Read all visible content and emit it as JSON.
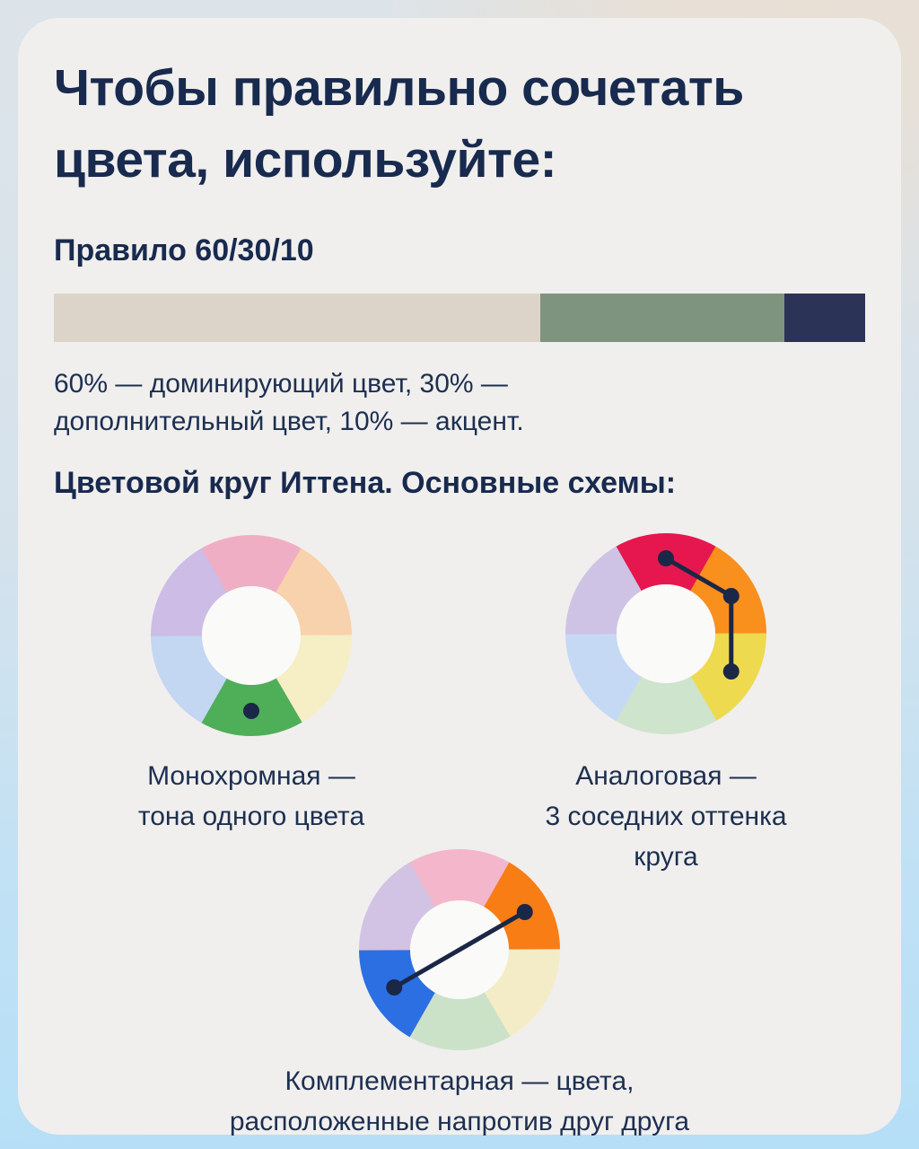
{
  "title_lines": [
    "Чтобы правильно сочетать",
    "цвета, используйте:"
  ],
  "rule": {
    "heading": "Правило 60/30/10",
    "bar_segments": [
      {
        "label": "60%",
        "percent": 60,
        "color": "#dcd4c9"
      },
      {
        "label": "30%",
        "percent": 30,
        "color": "#7f947e"
      },
      {
        "label": "10%",
        "percent": 10,
        "color": "#2b3456"
      }
    ],
    "description_lines": [
      "60% — доминирующий цвет, 30% —",
      "дополнительный цвет, 10% — акцент."
    ]
  },
  "wheels_section": {
    "heading": "Цветовой круг Иттена. Основные схемы:",
    "marker_color": "#1b2746",
    "hole_color": "#fafaf9",
    "wheels": [
      {
        "id": "monochrome",
        "caption_lines": [
          "Монохромная —",
          "тона одного цвета"
        ],
        "segments": [
          "#f0aec5",
          "#f8d2ad",
          "#f6eec4",
          "#4fae58",
          "#c3d6f2",
          "#cdbce5"
        ],
        "marked": [
          3
        ]
      },
      {
        "id": "analogous",
        "caption_lines": [
          "Аналоговая —",
          "3 соседних оттенка",
          "круга"
        ],
        "segments": [
          "#e6174e",
          "#f98f1d",
          "#eeda4f",
          "#cfe4cc",
          "#c6d9f4",
          "#cfc3e5"
        ],
        "marked": [
          0,
          1,
          2
        ]
      },
      {
        "id": "complementary",
        "caption_lines": [
          "Комплементарная — цвета,",
          "расположенные напротив друг друга"
        ],
        "segments": [
          "#f3b6cb",
          "#f87d15",
          "#f4ecc6",
          "#cbe2c8",
          "#2b6fe2",
          "#d2c3e4"
        ],
        "marked": [
          1,
          4
        ]
      }
    ]
  },
  "colors": {
    "background_top_left": "#dde4e9",
    "background_top_right": "#e9dfd4",
    "background_bottom": "#b5dff7",
    "card": "#f0efed",
    "text": "#182a4e"
  }
}
